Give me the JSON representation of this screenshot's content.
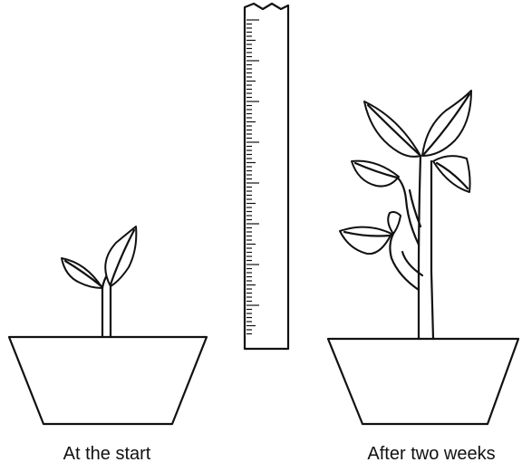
{
  "labels": {
    "left": "At the start",
    "right": "After two weeks"
  }
}
